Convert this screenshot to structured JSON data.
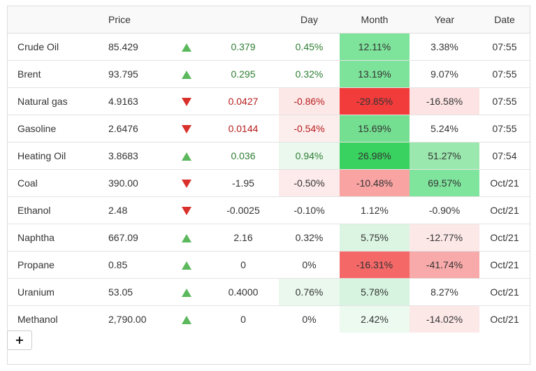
{
  "headers": {
    "name": "",
    "price": "Price",
    "arrow": "",
    "change": "",
    "day": "Day",
    "month": "Month",
    "year": "Year",
    "date": "Date"
  },
  "rows": [
    {
      "name": "Crude Oil",
      "price": "85.429",
      "direction": "up",
      "change": "0.379",
      "day": "0.45%",
      "month": "12.11%",
      "year": "3.38%",
      "date": "07:55",
      "change_color": "#2e7d32",
      "day_color": "#2e7d32",
      "day_bg": "#ffffff",
      "month_bg": "#7ee49b",
      "year_bg": "#ffffff"
    },
    {
      "name": "Brent",
      "price": "93.795",
      "direction": "up",
      "change": "0.295",
      "day": "0.32%",
      "month": "13.19%",
      "year": "9.07%",
      "date": "07:55",
      "change_color": "#2e7d32",
      "day_color": "#2e7d32",
      "day_bg": "#ffffff",
      "month_bg": "#7de39a",
      "year_bg": "#ffffff"
    },
    {
      "name": "Natural gas",
      "price": "4.9163",
      "direction": "down",
      "change": "0.0427",
      "day": "-0.86%",
      "month": "-29.85%",
      "year": "-16.58%",
      "date": "07:55",
      "change_color": "#b71c1c",
      "day_color": "#b71c1c",
      "day_bg": "#fde8e8",
      "month_bg": "#f23b3b",
      "year_bg": "#fde3e3"
    },
    {
      "name": "Gasoline",
      "price": "2.6476",
      "direction": "down",
      "change": "0.0144",
      "day": "-0.54%",
      "month": "15.69%",
      "year": "5.24%",
      "date": "07:55",
      "change_color": "#b71c1c",
      "day_color": "#b71c1c",
      "day_bg": "#fdeeee",
      "month_bg": "#74df91",
      "year_bg": "#ffffff"
    },
    {
      "name": "Heating Oil",
      "price": "3.8683",
      "direction": "up",
      "change": "0.036",
      "day": "0.94%",
      "month": "26.98%",
      "year": "51.27%",
      "date": "07:54",
      "change_color": "#2e7d32",
      "day_color": "#2e7d32",
      "day_bg": "#eaf8ee",
      "month_bg": "#39d15f",
      "year_bg": "#9ae8ae"
    },
    {
      "name": "Coal",
      "price": "390.00",
      "direction": "down",
      "change": "-1.95",
      "day": "-0.50%",
      "month": "-10.48%",
      "year": "69.57%",
      "date": "Oct/21",
      "change_color": "#333333",
      "day_color": "#333333",
      "day_bg": "#fdeaea",
      "month_bg": "#f9a3a3",
      "year_bg": "#7fe49c"
    },
    {
      "name": "Ethanol",
      "price": "2.48",
      "direction": "down",
      "change": "-0.0025",
      "day": "-0.10%",
      "month": "1.12%",
      "year": "-0.90%",
      "date": "Oct/21",
      "change_color": "#333333",
      "day_color": "#333333",
      "day_bg": "#ffffff",
      "month_bg": "#ffffff",
      "year_bg": "#ffffff"
    },
    {
      "name": "Naphtha",
      "price": "667.09",
      "direction": "up",
      "change": "2.16",
      "day": "0.32%",
      "month": "5.75%",
      "year": "-12.77%",
      "date": "Oct/21",
      "change_color": "#333333",
      "day_color": "#333333",
      "day_bg": "#ffffff",
      "month_bg": "#dbf5e2",
      "year_bg": "#fde8e8"
    },
    {
      "name": "Propane",
      "price": "0.85",
      "direction": "up",
      "change": "0",
      "day": "0%",
      "month": "-16.31%",
      "year": "-41.74%",
      "date": "Oct/21",
      "change_color": "#333333",
      "day_color": "#333333",
      "day_bg": "#ffffff",
      "month_bg": "#f46868",
      "year_bg": "#f8a9a9"
    },
    {
      "name": "Uranium",
      "price": "53.05",
      "direction": "up",
      "change": "0.4000",
      "day": "0.76%",
      "month": "5.78%",
      "year": "8.27%",
      "date": "Oct/21",
      "change_color": "#333333",
      "day_color": "#333333",
      "day_bg": "#eaf8ee",
      "month_bg": "#d6f4df",
      "year_bg": "#ffffff"
    },
    {
      "name": "Methanol",
      "price": "2,790.00",
      "direction": "up",
      "change": "0",
      "day": "0%",
      "month": "2.42%",
      "year": "-14.02%",
      "date": "Oct/21",
      "change_color": "#333333",
      "day_color": "#333333",
      "day_bg": "#ffffff",
      "month_bg": "#ecfaf0",
      "year_bg": "#fde8e8"
    }
  ],
  "add_button": {
    "label": "+"
  },
  "colors": {
    "up_arrow": "#5cb85c",
    "down_arrow": "#d9302c",
    "border": "#dddddd"
  }
}
